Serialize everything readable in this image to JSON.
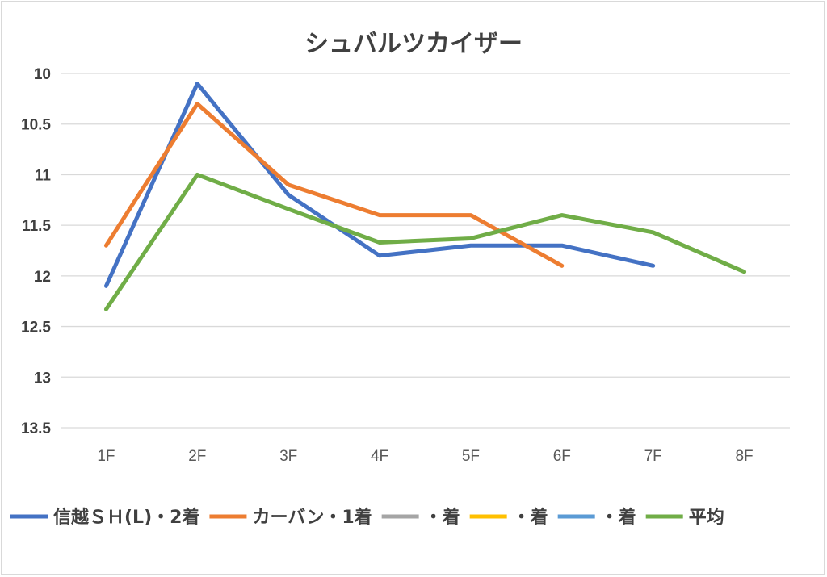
{
  "chart_data": {
    "type": "line",
    "title": "シュバルツカイザー",
    "x": [
      "1F",
      "2F",
      "3F",
      "4F",
      "5F",
      "6F",
      "7F",
      "8F"
    ],
    "ylim": [
      10,
      13.5
    ],
    "y_reversed": true,
    "y_ticks": [
      "10",
      "10.5",
      "11",
      "11.5",
      "12",
      "12.5",
      "13",
      "13.5"
    ],
    "grid": true,
    "legend_position": "bottom",
    "series": [
      {
        "name": "信越ＳＨ(L)・2着",
        "color": "#4472c4",
        "values": [
          12.1,
          10.1,
          11.2,
          11.8,
          11.7,
          11.7,
          11.9,
          null
        ]
      },
      {
        "name": "カーバン・1着",
        "color": "#ed7d31",
        "values": [
          11.7,
          10.3,
          11.1,
          11.4,
          11.4,
          11.9,
          null,
          null
        ]
      },
      {
        "name": "・着",
        "color": "#a5a5a5",
        "values": [
          null,
          null,
          null,
          null,
          null,
          null,
          null,
          null
        ]
      },
      {
        "name": "・着",
        "color": "#ffc000",
        "values": [
          null,
          null,
          null,
          null,
          null,
          null,
          null,
          null
        ]
      },
      {
        "name": "・着",
        "color": "#5b9bd5",
        "values": [
          null,
          null,
          null,
          null,
          null,
          null,
          null,
          null
        ]
      },
      {
        "name": "平均",
        "color": "#70ad47",
        "values": [
          12.33,
          11.0,
          11.34,
          11.67,
          11.63,
          11.4,
          11.57,
          11.96
        ]
      }
    ]
  }
}
